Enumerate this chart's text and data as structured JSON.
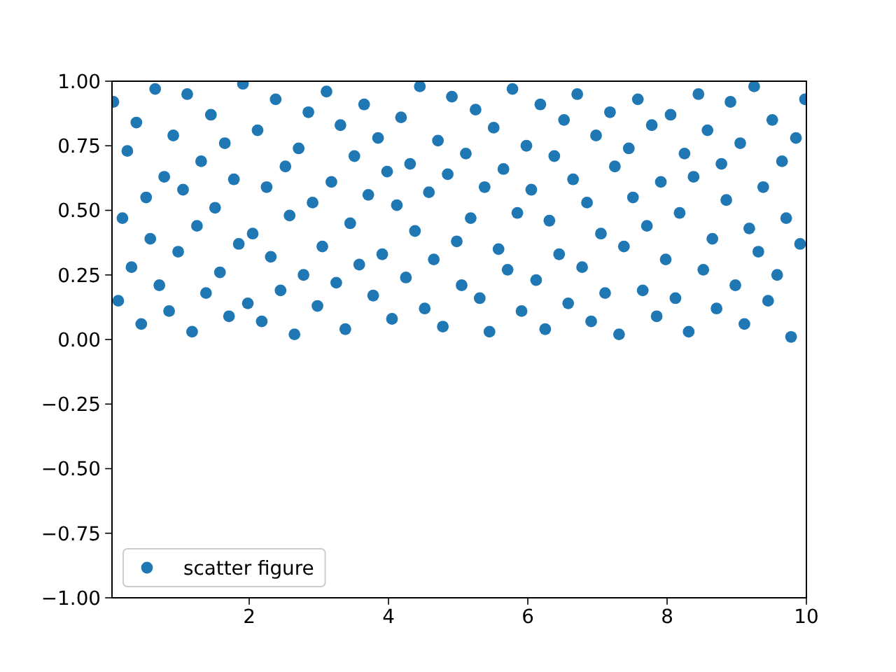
{
  "chart_data": {
    "type": "scatter",
    "series": [
      {
        "name": "scatter figure",
        "color": "#1f77b4",
        "x": [
          0.05,
          0.12,
          0.18,
          0.25,
          0.31,
          0.38,
          0.45,
          0.52,
          0.58,
          0.65,
          0.71,
          0.78,
          0.85,
          0.91,
          0.98,
          1.05,
          1.11,
          1.18,
          1.25,
          1.31,
          1.38,
          1.45,
          1.51,
          1.58,
          1.65,
          1.71,
          1.78,
          1.85,
          1.91,
          1.98,
          2.05,
          2.12,
          2.18,
          2.25,
          2.31,
          2.38,
          2.45,
          2.52,
          2.58,
          2.65,
          2.71,
          2.78,
          2.85,
          2.91,
          2.98,
          3.05,
          3.11,
          3.18,
          3.25,
          3.31,
          3.38,
          3.45,
          3.51,
          3.58,
          3.65,
          3.71,
          3.78,
          3.85,
          3.91,
          3.98,
          4.05,
          4.12,
          4.18,
          4.25,
          4.31,
          4.38,
          4.45,
          4.52,
          4.58,
          4.65,
          4.71,
          4.78,
          4.85,
          4.91,
          4.98,
          5.05,
          5.11,
          5.18,
          5.25,
          5.31,
          5.38,
          5.45,
          5.51,
          5.58,
          5.65,
          5.71,
          5.78,
          5.85,
          5.91,
          5.98,
          6.05,
          6.12,
          6.18,
          6.25,
          6.31,
          6.38,
          6.45,
          6.52,
          6.58,
          6.65,
          6.71,
          6.78,
          6.85,
          6.91,
          6.98,
          7.05,
          7.11,
          7.18,
          7.25,
          7.31,
          7.38,
          7.45,
          7.51,
          7.58,
          7.65,
          7.71,
          7.78,
          7.85,
          7.91,
          7.98,
          8.05,
          8.12,
          8.18,
          8.25,
          8.31,
          8.38,
          8.45,
          8.52,
          8.58,
          8.65,
          8.71,
          8.78,
          8.85,
          8.91,
          8.98,
          9.05,
          9.11,
          9.18,
          9.25,
          9.31,
          9.38,
          9.45,
          9.51,
          9.58,
          9.65,
          9.71,
          9.78,
          9.85,
          9.91,
          9.98
        ],
        "values": [
          0.92,
          0.15,
          0.47,
          0.73,
          0.28,
          0.84,
          0.06,
          0.55,
          0.39,
          0.97,
          0.21,
          0.63,
          0.11,
          0.79,
          0.34,
          0.58,
          0.95,
          0.03,
          0.44,
          0.69,
          0.18,
          0.87,
          0.51,
          0.26,
          0.76,
          0.09,
          0.62,
          0.37,
          0.99,
          0.14,
          0.41,
          0.81,
          0.07,
          0.59,
          0.32,
          0.93,
          0.19,
          0.67,
          0.48,
          0.02,
          0.74,
          0.25,
          0.88,
          0.53,
          0.13,
          0.36,
          0.96,
          0.61,
          0.22,
          0.83,
          0.04,
          0.45,
          0.71,
          0.29,
          0.91,
          0.56,
          0.17,
          0.78,
          0.33,
          0.65,
          0.08,
          0.52,
          0.86,
          0.24,
          0.68,
          0.42,
          0.98,
          0.12,
          0.57,
          0.31,
          0.77,
          0.05,
          0.64,
          0.94,
          0.38,
          0.21,
          0.72,
          0.47,
          0.89,
          0.16,
          0.59,
          0.03,
          0.82,
          0.35,
          0.66,
          0.27,
          0.97,
          0.49,
          0.11,
          0.75,
          0.58,
          0.23,
          0.91,
          0.04,
          0.46,
          0.71,
          0.33,
          0.85,
          0.14,
          0.62,
          0.95,
          0.28,
          0.53,
          0.07,
          0.79,
          0.41,
          0.18,
          0.88,
          0.67,
          0.02,
          0.36,
          0.74,
          0.55,
          0.93,
          0.19,
          0.44,
          0.83,
          0.09,
          0.61,
          0.31,
          0.87,
          0.16,
          0.49,
          0.72,
          0.03,
          0.63,
          0.95,
          0.27,
          0.81,
          0.39,
          0.12,
          0.68,
          0.54,
          0.92,
          0.21,
          0.76,
          0.06,
          0.43,
          0.98,
          0.34,
          0.59,
          0.15,
          0.85,
          0.25,
          0.69,
          0.47,
          0.01,
          0.78,
          0.37,
          0.93
        ]
      }
    ],
    "xlim": [
      0.03,
      10
    ],
    "xticks": [
      2,
      4,
      6,
      8,
      10
    ],
    "ylim": [
      -1,
      1
    ],
    "yticks": [
      {
        "value": -1,
        "label": "−1.00"
      },
      {
        "value": -0.75,
        "label": "−0.75"
      },
      {
        "value": -0.5,
        "label": "−0.50"
      },
      {
        "value": -0.25,
        "label": "−0.25"
      },
      {
        "value": 0,
        "label": "0.00"
      },
      {
        "value": 0.25,
        "label": "0.25"
      },
      {
        "value": 0.5,
        "label": "0.50"
      },
      {
        "value": 0.75,
        "label": "0.75"
      },
      {
        "value": 1,
        "label": "1.00"
      }
    ],
    "marker": "circle",
    "legend": "bottom left"
  }
}
